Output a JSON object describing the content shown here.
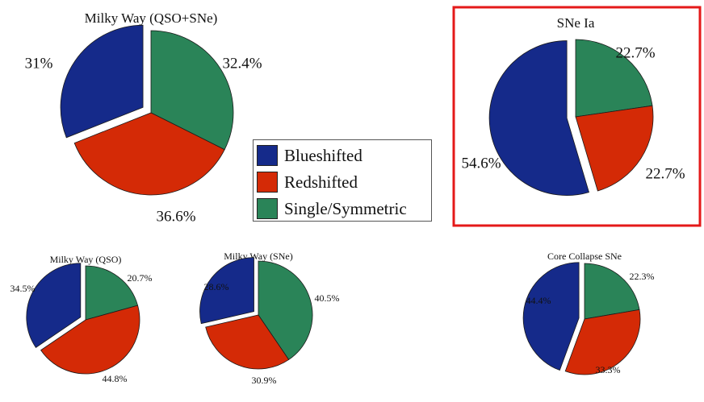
{
  "colors": {
    "blueshifted": "#152a8a",
    "redshifted": "#d42a06",
    "single_symmetric": "#2a8458",
    "highlight_box": "#e41919"
  },
  "legend": {
    "items": [
      {
        "label": "Blueshifted",
        "color_key": "blueshifted"
      },
      {
        "label": "Redshifted",
        "color_key": "redshifted"
      },
      {
        "label": "Single/Symmetric",
        "color_key": "single_symmetric"
      }
    ]
  },
  "chart_data": [
    {
      "type": "pie",
      "title": "Milky Way (QSO+SNe)",
      "slices": [
        {
          "label": "Blueshifted",
          "value": 31.0,
          "text": "31%",
          "exploded": true
        },
        {
          "label": "Redshifted",
          "value": 36.6,
          "text": "36.6%",
          "exploded": false
        },
        {
          "label": "Single/Symmetric",
          "value": 32.4,
          "text": "32.4%",
          "exploded": false
        }
      ]
    },
    {
      "type": "pie",
      "title": "SNe Ia",
      "highlighted": true,
      "slices": [
        {
          "label": "Blueshifted",
          "value": 54.6,
          "text": "54.6%",
          "exploded": true
        },
        {
          "label": "Redshifted",
          "value": 22.7,
          "text": "22.7%",
          "exploded": false
        },
        {
          "label": "Single/Symmetric",
          "value": 22.7,
          "text": "22.7%",
          "exploded": false
        }
      ]
    },
    {
      "type": "pie",
      "title": "Milky Way (QSO)",
      "slices": [
        {
          "label": "Blueshifted",
          "value": 34.5,
          "text": "34.5%",
          "exploded": true
        },
        {
          "label": "Redshifted",
          "value": 44.8,
          "text": "44.8%",
          "exploded": false
        },
        {
          "label": "Single/Symmetric",
          "value": 20.7,
          "text": "20.7%",
          "exploded": false
        }
      ]
    },
    {
      "type": "pie",
      "title": "Milky Way (SNe)",
      "slices": [
        {
          "label": "Blueshifted",
          "value": 28.6,
          "text": "28.6%",
          "exploded": true
        },
        {
          "label": "Redshifted",
          "value": 30.9,
          "text": "30.9%",
          "exploded": false
        },
        {
          "label": "Single/Symmetric",
          "value": 40.5,
          "text": "40.5%",
          "exploded": false
        }
      ]
    },
    {
      "type": "pie",
      "title": "Core Collapse SNe",
      "slices": [
        {
          "label": "Blueshifted",
          "value": 44.4,
          "text": "44.4%",
          "exploded": true
        },
        {
          "label": "Redshifted",
          "value": 33.3,
          "text": "33.3%",
          "exploded": false
        },
        {
          "label": "Single/Symmetric",
          "value": 22.3,
          "text": "22.3%",
          "exploded": false
        }
      ]
    }
  ]
}
